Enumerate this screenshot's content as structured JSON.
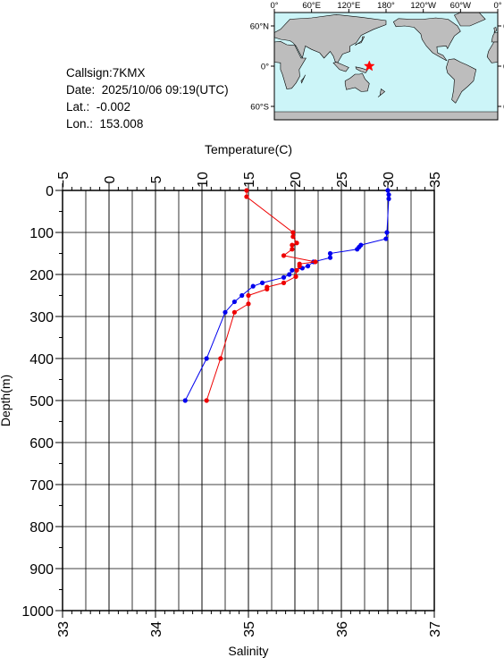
{
  "info": {
    "callsign": "Callsign:7KMX",
    "date": "Date:  2025/10/06 09:19(UTC)",
    "lat": "Lat.:  -0.002",
    "lon": "Lon.:  153.008"
  },
  "map": {
    "lon_labels": [
      "0°",
      "60°E",
      "120°E",
      "180°",
      "120°W",
      "60°W",
      "0°"
    ],
    "lat_labels": [
      "60°N",
      "0°",
      "60°S"
    ],
    "ocean_color": "#ccf5f8",
    "land_color": "#bdbdbd",
    "marker": {
      "lon": 153.008,
      "lat": -0.002,
      "color": "#ff0000",
      "icon": "star-icon"
    }
  },
  "chart_data": {
    "type": "line",
    "ylabel": "Depth(m)",
    "y_ticks": [
      0,
      100,
      200,
      300,
      400,
      500,
      600,
      700,
      800,
      900,
      1000
    ],
    "ylim": [
      0,
      1000
    ],
    "top_axis": {
      "label": "Temperature(C)",
      "ticks": [
        -5,
        0,
        5,
        10,
        15,
        20,
        25,
        30,
        35
      ],
      "lim": [
        -5,
        35
      ]
    },
    "bottom_axis": {
      "label": "Salinity",
      "ticks": [
        33,
        34,
        35,
        36,
        37
      ],
      "lim": [
        33,
        37
      ]
    },
    "grid": true,
    "series": [
      {
        "axis": "temperature",
        "color": "#0000ee",
        "points": [
          [
            30.0,
            0
          ],
          [
            30.1,
            10
          ],
          [
            30.1,
            20
          ],
          [
            29.9,
            100
          ],
          [
            29.8,
            115
          ],
          [
            27.1,
            130
          ],
          [
            26.9,
            135
          ],
          [
            26.7,
            140
          ],
          [
            23.8,
            150
          ],
          [
            23.8,
            160
          ],
          [
            22.0,
            170
          ],
          [
            21.4,
            180
          ],
          [
            20.8,
            185
          ],
          [
            19.7,
            190
          ],
          [
            19.4,
            200
          ],
          [
            18.8,
            207
          ],
          [
            16.5,
            220
          ],
          [
            15.5,
            228
          ],
          [
            14.3,
            250
          ],
          [
            13.5,
            265
          ],
          [
            12.5,
            290
          ],
          [
            10.5,
            400
          ],
          [
            8.2,
            500
          ]
        ]
      },
      {
        "axis": "salinity",
        "color": "#ee0000",
        "points": [
          [
            34.98,
            0
          ],
          [
            34.98,
            15
          ],
          [
            35.48,
            100
          ],
          [
            35.48,
            110
          ],
          [
            35.52,
            125
          ],
          [
            35.47,
            130
          ],
          [
            35.47,
            140
          ],
          [
            35.38,
            155
          ],
          [
            35.72,
            170
          ],
          [
            35.55,
            175
          ],
          [
            35.55,
            180
          ],
          [
            35.52,
            190
          ],
          [
            35.51,
            205
          ],
          [
            35.38,
            220
          ],
          [
            35.2,
            230
          ],
          [
            35.2,
            235
          ],
          [
            35.0,
            250
          ],
          [
            35.0,
            270
          ],
          [
            34.85,
            290
          ],
          [
            34.7,
            400
          ],
          [
            34.55,
            500
          ]
        ]
      }
    ]
  }
}
